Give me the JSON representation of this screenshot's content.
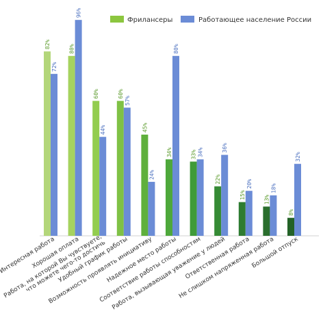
{
  "chart_data": {
    "type": "bar",
    "title": "",
    "xlabel": "",
    "ylabel": "",
    "ylim": [
      0,
      100
    ],
    "grid": false,
    "legend_position": "top-right",
    "categories": [
      "Интересная работа",
      "Хорошая оплата",
      "Работа, на которой Вы чувствуете,|что можете чего-то достичь",
      "Удобный график работы",
      "Возможность проявлять инициативу",
      "Надежное место работы",
      "Соответствие работы способностям",
      "Работа, вызывающая уважение у людей",
      "Ответственная работа",
      "Не слишком напряженная работа",
      "Большой отпуск"
    ],
    "series": [
      {
        "name": "Фрилансеры",
        "values": [
          82,
          80,
          60,
          60,
          45,
          34,
          33,
          22,
          15,
          13,
          8
        ],
        "value_labels": [
          "82%",
          "80%",
          "60%",
          "60%",
          "45%",
          "34%",
          "33%",
          "22%",
          "15%",
          "13%",
          "8%"
        ],
        "colors": [
          "#b3d67a",
          "#a6d35f",
          "#93cd4f",
          "#7fc145",
          "#5fb03c",
          "#4ea83b",
          "#3f9b39",
          "#368b35",
          "#2e7c31",
          "#2a6e2d",
          "#236227"
        ]
      },
      {
        "name": "Работающее население России",
        "values": [
          72,
          96,
          44,
          57,
          24,
          80,
          34,
          36,
          20,
          18,
          32
        ],
        "value_labels": [
          "72%",
          "96%",
          "44%",
          "57%",
          "24%",
          "80%",
          "34%",
          "36%",
          "20%",
          "18%",
          "32%"
        ],
        "color": "#6b8cd6"
      }
    ],
    "legend_colors": [
      "#8cc63f",
      "#6b8cd6"
    ],
    "label_colors": [
      "#5a9a2a",
      "#4a6fbf"
    ]
  }
}
